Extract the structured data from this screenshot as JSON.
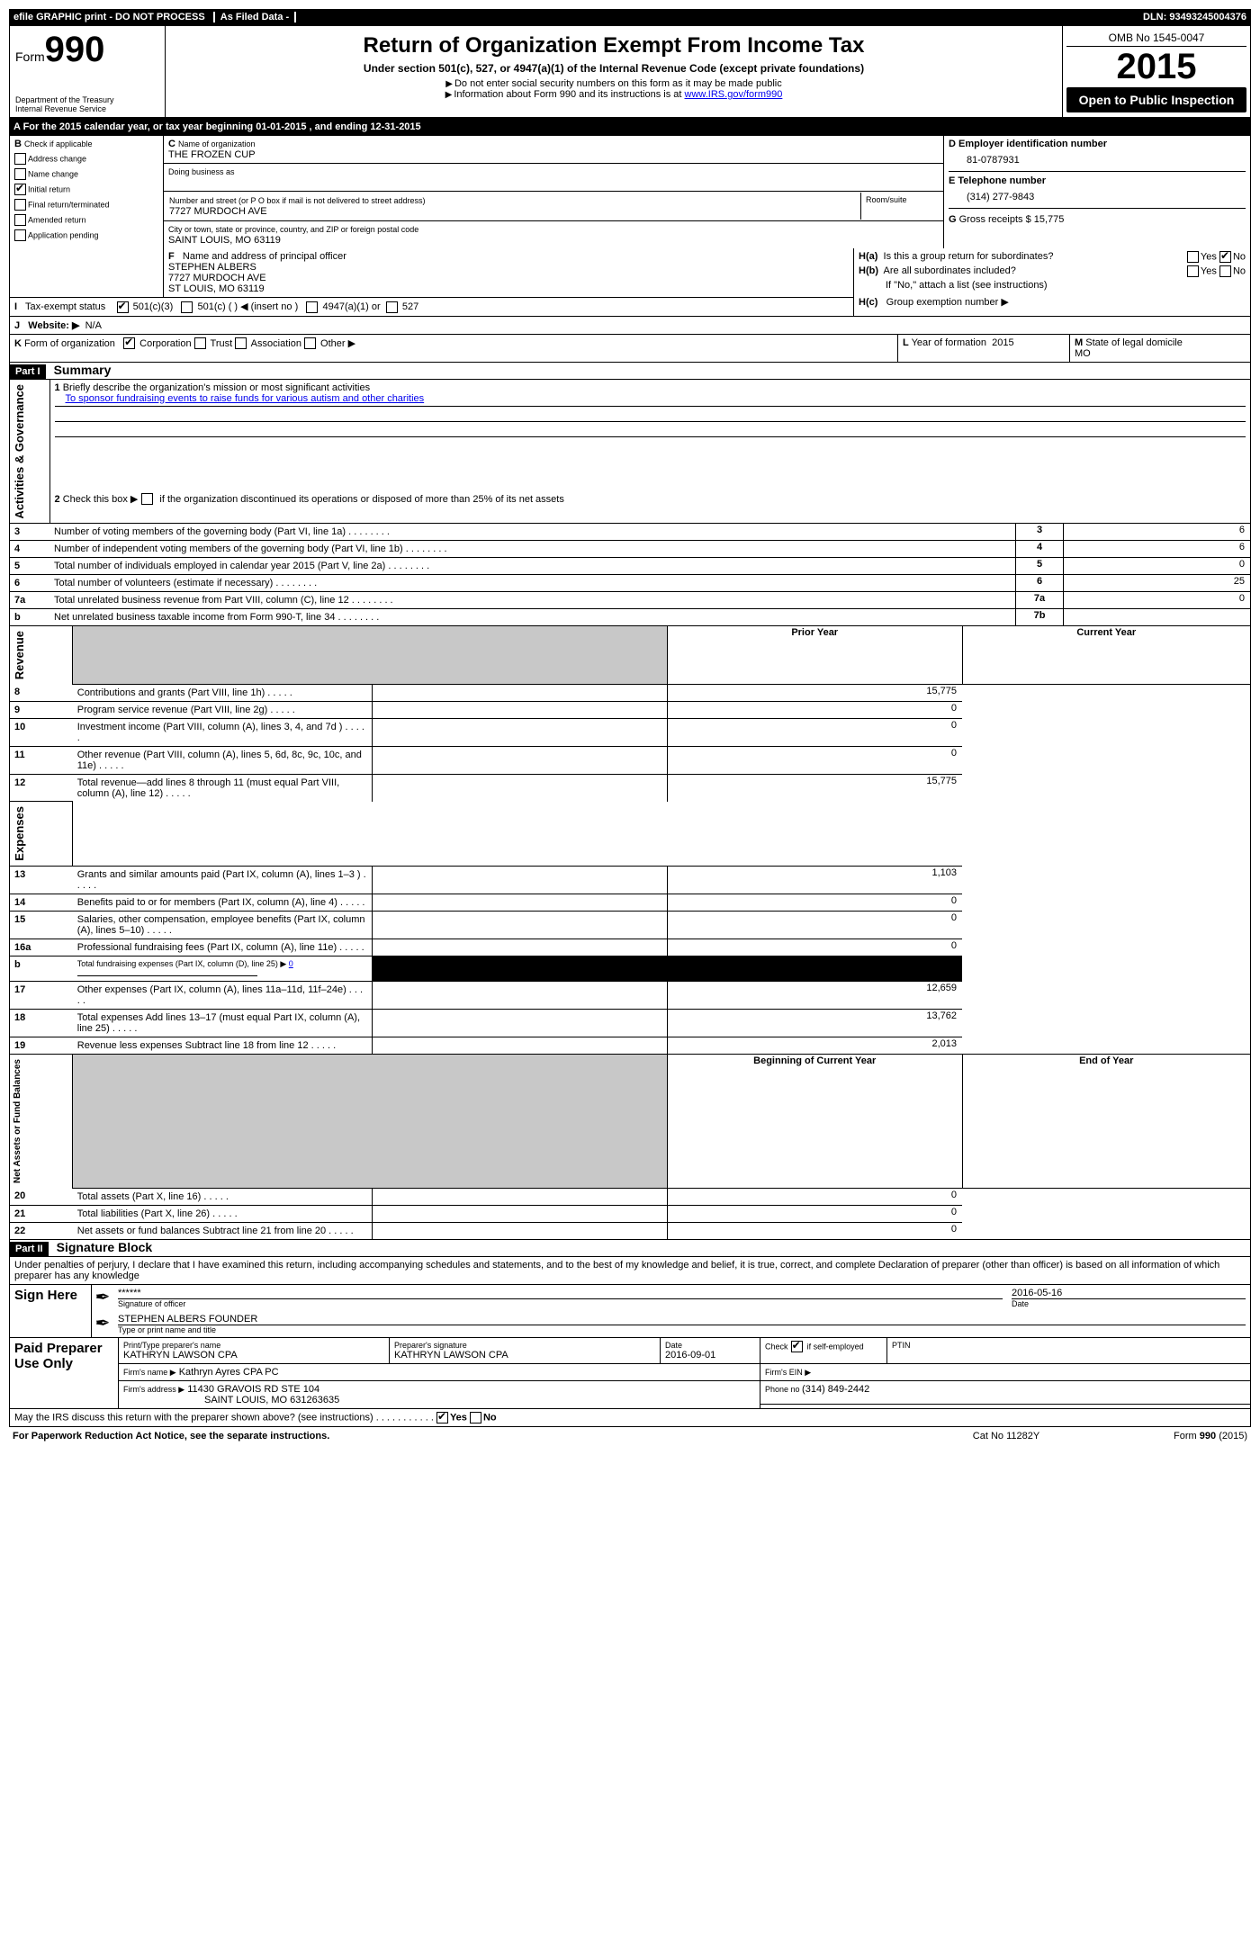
{
  "topbar": {
    "left": "efile GRAPHIC print - DO NOT PROCESS",
    "mid": "As Filed Data -",
    "right": "DLN: 93493245004376"
  },
  "header": {
    "form_prefix": "Form",
    "form_number": "990",
    "dept1": "Department of the Treasury",
    "dept2": "Internal Revenue Service",
    "title": "Return of Organization Exempt From Income Tax",
    "subtitle": "Under section 501(c), 527, or 4947(a)(1) of the Internal Revenue Code (except private foundations)",
    "note1": "Do not enter social security numbers on this form as it may be made public",
    "note2": "Information about Form 990 and its instructions is at ",
    "note2_link": "www.IRS.gov/form990",
    "omb": "OMB No 1545-0047",
    "year": "2015",
    "open": "Open to Public Inspection"
  },
  "lineA": {
    "prefix": "A  For the 2015 calendar year, or tax year beginning ",
    "begin": "01-01-2015",
    "mid": " , and ending ",
    "end": "12-31-2015"
  },
  "B": {
    "label": "B",
    "check_if": "Check if applicable",
    "items": [
      "Address change",
      "Name change",
      "Initial return",
      "Final return/terminated",
      "Amended return",
      "Application pending"
    ],
    "checked_index": 2
  },
  "C": {
    "label": "C",
    "name_label": "Name of organization",
    "name": "THE FROZEN CUP",
    "dba_label": "Doing business as",
    "street_label": "Number and street (or P O  box if mail is not delivered to street address)",
    "room_label": "Room/suite",
    "street": "7727 MURDOCH AVE",
    "city_label": "City or town, state or province, country, and ZIP or foreign postal code",
    "city": "SAINT LOUIS, MO  63119",
    "F_label": "F",
    "F_text": "Name and address of principal officer",
    "officer_name": "STEPHEN ALBERS",
    "officer_street": "7727 MURDOCH AVE",
    "officer_city": "ST LOUIS, MO  63119"
  },
  "right": {
    "D_label": "D Employer identification number",
    "D_val": "81-0787931",
    "E_label": "E Telephone number",
    "E_val": "(314) 277-9843",
    "G_label": "G",
    "G_text": "Gross receipts $ ",
    "G_val": "15,775",
    "Ha_label": "H(a)",
    "Ha_text": "Is this a group return for subordinates?",
    "Hb_label": "H(b)",
    "Hb_text": "Are all subordinates included?",
    "H_note": "If \"No,\" attach a list  (see instructions)",
    "Hc_label": "H(c)",
    "Hc_text": "Group exemption number ▶",
    "yes": "Yes",
    "no": "No"
  },
  "I": {
    "label": "I",
    "text": "Tax-exempt status",
    "opt1": "501(c)(3)",
    "opt2": "501(c) (  ) ◀ (insert no )",
    "opt3": "4947(a)(1) or",
    "opt4": "527"
  },
  "J": {
    "label": "J",
    "text": "Website: ▶",
    "val": "N/A"
  },
  "K": {
    "label": "K",
    "text": "Form of organization",
    "opts": [
      "Corporation",
      "Trust",
      "Association",
      "Other ▶"
    ]
  },
  "L": {
    "label": "L",
    "text": "Year of formation",
    "val": "2015"
  },
  "M": {
    "label": "M",
    "text": "State of legal domicile",
    "val": "MO"
  },
  "part1": {
    "tag": "Part I",
    "title": "Summary",
    "vert_label": "Activities & Governance",
    "line1_label": "1",
    "line1_text": "Briefly describe the organization's mission or most significant activities",
    "line1_val": "To sponsor fundraising events to raise funds for various autism and other charities",
    "line2_label": "2",
    "line2_text": "Check this box ▶       if the organization discontinued its operations or disposed of more than 25% of its net assets",
    "rows": [
      {
        "n": "3",
        "t": "Number of voting members of the governing body (Part VI, line 1a)",
        "c": "3",
        "v": "6"
      },
      {
        "n": "4",
        "t": "Number of independent voting members of the governing body (Part VI, line 1b)",
        "c": "4",
        "v": "6"
      },
      {
        "n": "5",
        "t": "Total number of individuals employed in calendar year 2015 (Part V, line 2a)",
        "c": "5",
        "v": "0"
      },
      {
        "n": "6",
        "t": "Total number of volunteers (estimate if necessary)",
        "c": "6",
        "v": "25"
      },
      {
        "n": "7a",
        "t": "Total unrelated business revenue from Part VIII, column (C), line 12",
        "c": "7a",
        "v": "0"
      },
      {
        "n": "b",
        "t": "Net unrelated business taxable income from Form 990-T, line 34",
        "c": "7b",
        "v": ""
      }
    ]
  },
  "revenue": {
    "vert": "Revenue",
    "hdr_prior": "Prior Year",
    "hdr_curr": "Current Year",
    "rows": [
      {
        "n": "8",
        "t": "Contributions and grants (Part VIII, line 1h)",
        "p": "",
        "c": "15,775"
      },
      {
        "n": "9",
        "t": "Program service revenue (Part VIII, line 2g)",
        "p": "",
        "c": "0"
      },
      {
        "n": "10",
        "t": "Investment income (Part VIII, column (A), lines 3, 4, and 7d )",
        "p": "",
        "c": "0"
      },
      {
        "n": "11",
        "t": "Other revenue (Part VIII, column (A), lines 5, 6d, 8c, 9c, 10c, and 11e)",
        "p": "",
        "c": "0"
      },
      {
        "n": "12",
        "t": "Total revenue—add lines 8 through 11 (must equal Part VIII, column (A), line 12)",
        "p": "",
        "c": "15,775"
      }
    ]
  },
  "expenses": {
    "vert": "Expenses",
    "rows": [
      {
        "n": "13",
        "t": "Grants and similar amounts paid (Part IX, column (A), lines 1–3 )",
        "p": "",
        "c": "1,103"
      },
      {
        "n": "14",
        "t": "Benefits paid to or for members (Part IX, column (A), line 4)",
        "p": "",
        "c": "0"
      },
      {
        "n": "15",
        "t": "Salaries, other compensation, employee benefits (Part IX, column (A), lines 5–10)",
        "p": "",
        "c": "0"
      },
      {
        "n": "16a",
        "t": "Professional fundraising fees (Part IX, column (A), line 11e)",
        "p": "",
        "c": "0"
      }
    ],
    "b_n": "b",
    "b_t": "Total fundraising expenses (Part IX, column (D), line 25) ▶",
    "b_v": "0",
    "rows2": [
      {
        "n": "17",
        "t": "Other expenses (Part IX, column (A), lines 11a–11d, 11f–24e)",
        "p": "",
        "c": "12,659"
      },
      {
        "n": "18",
        "t": "Total expenses  Add lines 13–17 (must equal Part IX, column (A), line 25)",
        "p": "",
        "c": "13,762"
      },
      {
        "n": "19",
        "t": "Revenue less expenses  Subtract line 18 from line 12",
        "p": "",
        "c": "2,013"
      }
    ]
  },
  "netassets": {
    "vert": "Net Assets or Fund Balances",
    "hdr_beg": "Beginning of Current Year",
    "hdr_end": "End of Year",
    "rows": [
      {
        "n": "20",
        "t": "Total assets (Part X, line 16)",
        "p": "",
        "c": "0"
      },
      {
        "n": "21",
        "t": "Total liabilities (Part X, line 26)",
        "p": "",
        "c": "0"
      },
      {
        "n": "22",
        "t": "Net assets or fund balances  Subtract line 21 from line 20",
        "p": "",
        "c": "0"
      }
    ]
  },
  "part2": {
    "tag": "Part II",
    "title": "Signature Block",
    "penalty": "Under penalties of perjury, I declare that I have examined this return, including accompanying schedules and statements, and to the best of my knowledge and belief, it is true, correct, and complete  Declaration of preparer (other than officer) is based on all information of which preparer has any knowledge"
  },
  "sign": {
    "label": "Sign Here",
    "stars": "******",
    "sig_label": "Signature of officer",
    "date": "2016-05-16",
    "date_label": "Date",
    "name": "STEPHEN ALBERS FOUNDER",
    "name_label": "Type or print name and title"
  },
  "preparer": {
    "label": "Paid Preparer Use Only",
    "c1": "Print/Type preparer's name",
    "c1v": "KATHRYN LAWSON CPA",
    "c2": "Preparer's signature",
    "c2v": "KATHRYN LAWSON CPA",
    "c3": "Date",
    "c3v": "2016-09-01",
    "c4a": "Check",
    "c4b": "if self-employed",
    "c5": "PTIN",
    "firm_name_l": "Firm's name    ▶",
    "firm_name": "Kathryn Ayres CPA PC",
    "firm_ein_l": "Firm's EIN ▶",
    "firm_addr_l": "Firm's address ▶",
    "firm_addr1": "11430 GRAVOIS RD STE 104",
    "firm_addr2": "SAINT LOUIS, MO  631263635",
    "phone_l": "Phone no ",
    "phone": "(314) 849-2442"
  },
  "footer": {
    "may": "May the IRS discuss this return with the preparer shown above? (see instructions)",
    "yes": "Yes",
    "no": "No",
    "pra": "For Paperwork Reduction Act Notice, see the separate instructions.",
    "cat": "Cat No  11282Y",
    "form": "Form",
    "formno": "990",
    "formyr": "(2015)"
  }
}
